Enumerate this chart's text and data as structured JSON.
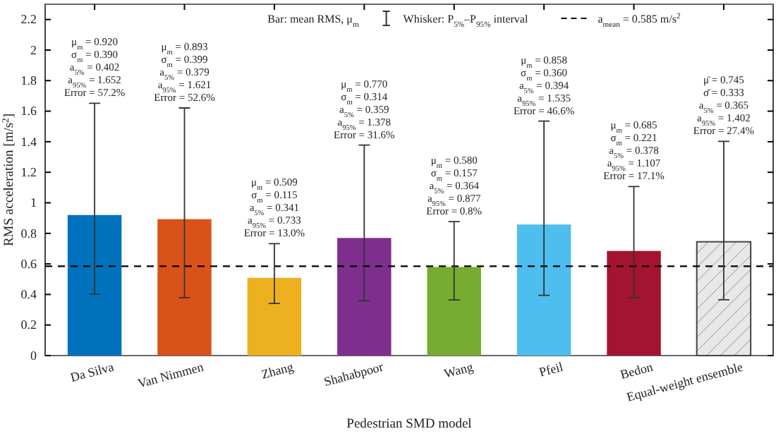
{
  "chart_data": {
    "type": "bar",
    "xlabel": "Pedestrian SMD model",
    "ylabel": "RMS acceleration [m/s$^{2}$]",
    "categories": [
      "Da Silva",
      "Van Nimmen",
      "Zhang",
      "Shahabpoor",
      "Wang",
      "Pfeil",
      "Bedon",
      "Equal-weight ensemble"
    ],
    "values": [
      0.92,
      0.893,
      0.509,
      0.77,
      0.58,
      0.858,
      0.685,
      0.745
    ],
    "colors": [
      "#0072bd",
      "#d95319",
      "#edb120",
      "#7e2f8e",
      "#77ac30",
      "#4dbeee",
      "#a2142f",
      "#e8e8e8"
    ],
    "errors": [
      [
        0.402,
        1.652
      ],
      [
        0.379,
        1.621
      ],
      [
        0.341,
        0.733
      ],
      [
        0.359,
        1.378
      ],
      [
        0.364,
        0.877
      ],
      [
        0.394,
        1.535
      ],
      [
        0.378,
        1.107
      ],
      [
        0.365,
        1.402
      ]
    ],
    "ylim": [
      0,
      2.3
    ],
    "yticks": [
      0,
      0.2,
      0.4,
      0.6,
      0.8,
      1,
      1.2,
      1.4,
      1.6,
      1.8,
      2,
      2.2
    ],
    "grid": false,
    "ref_lines": [
      {
        "axis": "y",
        "value": 0.585,
        "label": "a$_{mean}$ = 0.585 m/s$^{2}$",
        "line_style": "dashed",
        "color": "#000000"
      }
    ],
    "annotations": [
      "Bar: mean RMS, μ$_{m}$",
      "Whisker: P$_{5%}$–P$_{95%}$ interval",
      "μ$_{m}$ = 0.920",
      "σ$_{m}$ = 0.390",
      "a$_{5%}$ = 0.402",
      "a$_{95%}$ = 1.652",
      "Error = 57.2%",
      "μ$_{m}$ = 0.893",
      "σ$_{m}$ = 0.399",
      "a$_{5%}$ = 0.379",
      "a$_{95%}$ = 1.621",
      "Error = 52.6%",
      "μ$_{m}$ = 0.509",
      "σ$_{m}$ = 0.115",
      "a$_{5%}$ = 0.341",
      "a$_{95%}$ = 0.733",
      "Error = 13.0%",
      "μ$_{m}$ = 0.770",
      "σ$_{m}$ = 0.314",
      "a$_{5%}$ = 0.359",
      "a$_{95%}$ = 1.378",
      "Error = 31.6%",
      "μ$_{m}$ = 0.580",
      "σ$_{m}$ = 0.157",
      "a$_{5%}$ = 0.364",
      "a$_{95%}$ = 0.877",
      "Error = 0.8%",
      "μ$_{m}$ = 0.858",
      "σ$_{m}$ = 0.360",
      "a$_{5%}$ = 0.394",
      "a$_{95%}$ = 1.535",
      "Error = 46.6%",
      "μ$_{m}$ = 0.685",
      "σ$_{m}$ = 0.221",
      "a$_{5%}$ = 0.378",
      "a$_{95%}$ = 1.107",
      "Error = 17.1%",
      "μ̄ = 0.745",
      "σ̄ = 0.333",
      "a$_{5%}$ = 0.365",
      "a$_{95%}$ = 1.402",
      "Error = 27.4%"
    ]
  }
}
